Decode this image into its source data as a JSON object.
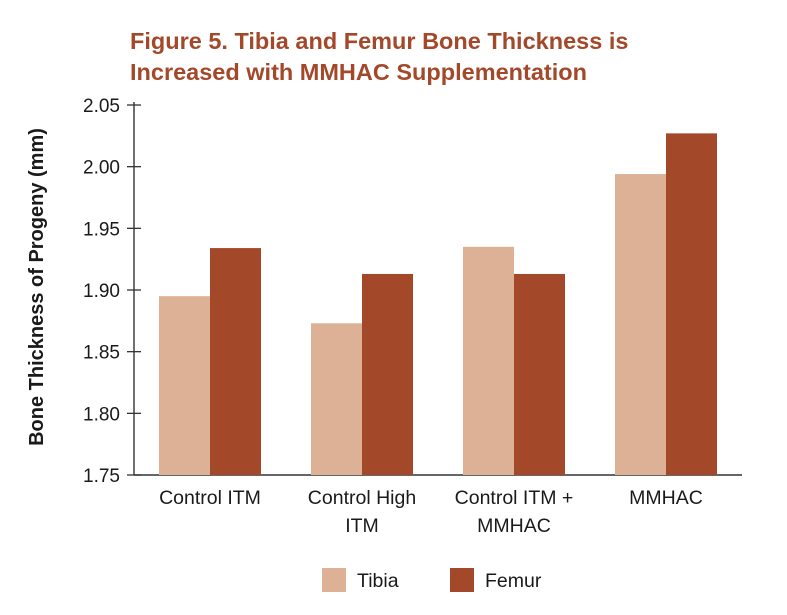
{
  "chart_data": {
    "type": "bar",
    "title_lines": [
      "Figure 5. Tibia and Femur Bone Thickness is",
      "Increased with MMHAC Supplementation"
    ],
    "ylabel": "Bone Thickness of Progeny (mm)",
    "xlabel": "",
    "categories": [
      [
        "Control ITM"
      ],
      [
        "Control High",
        "ITM"
      ],
      [
        "Control ITM +",
        "MMHAC"
      ],
      [
        "MMHAC"
      ]
    ],
    "series": [
      {
        "name": "Tibia",
        "color": "#dcb196",
        "values": [
          1.895,
          1.873,
          1.935,
          1.994
        ]
      },
      {
        "name": "Femur",
        "color": "#a4482a",
        "values": [
          1.934,
          1.913,
          1.913,
          2.027
        ]
      }
    ],
    "ylim": [
      1.75,
      2.05
    ],
    "yticks": [
      "1.75",
      "1.80",
      "1.85",
      "1.90",
      "1.95",
      "2.00",
      "2.05"
    ],
    "grid": false,
    "legend_position": "bottom-center"
  }
}
